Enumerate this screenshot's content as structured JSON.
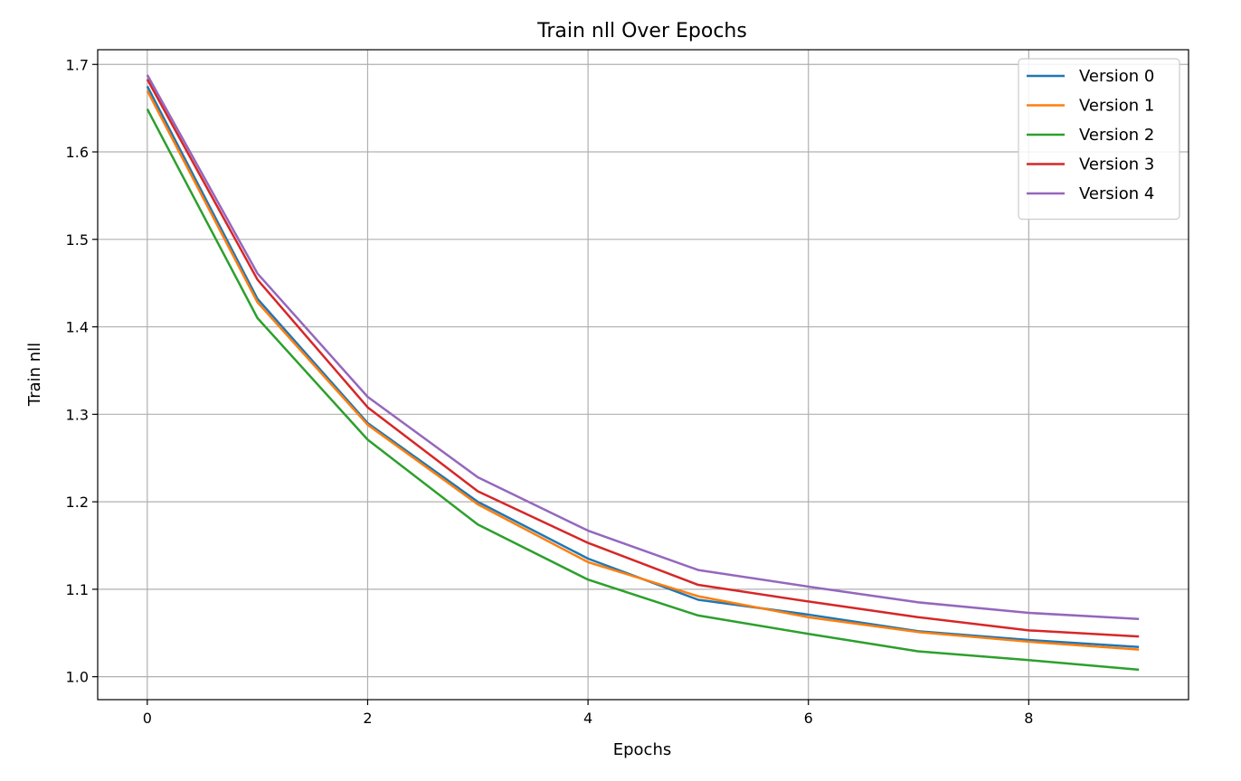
{
  "chart_data": {
    "type": "line",
    "title": "Train nll Over Epochs",
    "xlabel": "Epochs",
    "ylabel": "Train nll",
    "xlim": [
      -0.45,
      9.45
    ],
    "ylim": [
      0.9738,
      1.7168
    ],
    "xticks": [
      0,
      2,
      4,
      6,
      8
    ],
    "yticks": [
      1.0,
      1.1,
      1.2,
      1.3,
      1.4,
      1.5,
      1.6,
      1.7
    ],
    "grid": true,
    "legend_position": "top-right",
    "x": [
      0,
      1,
      2,
      3,
      4,
      5,
      6,
      7,
      8,
      9
    ],
    "series": [
      {
        "name": "Version 0",
        "color": "#1f77b4",
        "values": [
          1.675,
          1.432,
          1.29,
          1.2,
          1.135,
          1.088,
          1.071,
          1.052,
          1.042,
          1.034
        ]
      },
      {
        "name": "Version 1",
        "color": "#ff7f0e",
        "values": [
          1.67,
          1.428,
          1.288,
          1.197,
          1.131,
          1.092,
          1.068,
          1.051,
          1.04,
          1.031
        ]
      },
      {
        "name": "Version 2",
        "color": "#2ca02c",
        "values": [
          1.649,
          1.41,
          1.271,
          1.174,
          1.111,
          1.07,
          1.049,
          1.029,
          1.019,
          1.008
        ]
      },
      {
        "name": "Version 3",
        "color": "#d62728",
        "values": [
          1.683,
          1.454,
          1.308,
          1.212,
          1.153,
          1.105,
          1.086,
          1.068,
          1.053,
          1.046
        ]
      },
      {
        "name": "Version 4",
        "color": "#9467bd",
        "values": [
          1.688,
          1.461,
          1.32,
          1.228,
          1.167,
          1.122,
          1.103,
          1.085,
          1.073,
          1.066
        ]
      }
    ]
  }
}
